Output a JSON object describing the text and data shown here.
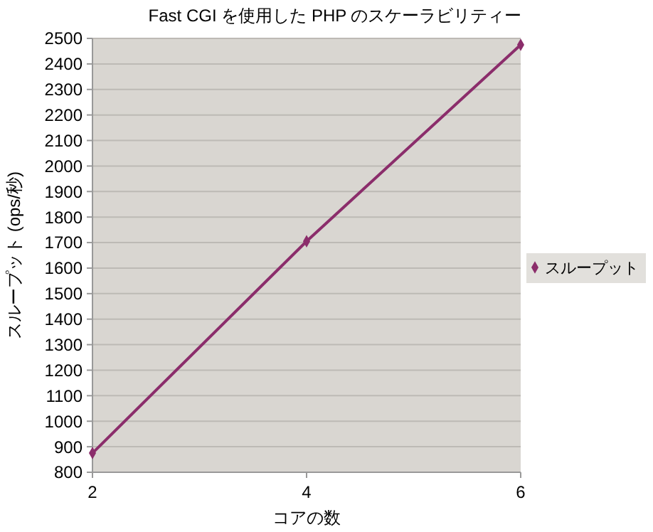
{
  "chart_data": {
    "type": "line",
    "title": "Fast CGI を使用した PHP のスケーラビリティー",
    "xlabel": "コアの数",
    "ylabel": "スループット (ops/秒)",
    "x": [
      2,
      4,
      6
    ],
    "xlim": [
      2,
      6
    ],
    "xticks": [
      2,
      4,
      6
    ],
    "ylim": [
      800,
      2500
    ],
    "yticks": [
      800,
      900,
      1000,
      1100,
      1200,
      1300,
      1400,
      1500,
      1600,
      1700,
      1800,
      1900,
      2000,
      2100,
      2200,
      2300,
      2400,
      2500
    ],
    "series": [
      {
        "name": "スループット",
        "color": "#8b2d6b",
        "values": [
          875,
          1705,
          2475
        ]
      }
    ],
    "grid": "y",
    "legend": "right",
    "marker": "diamond",
    "line_style": "solid"
  }
}
